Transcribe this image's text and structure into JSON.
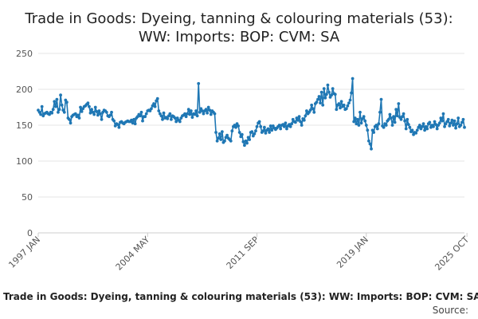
{
  "chart_data": {
    "type": "line",
    "title_lines": [
      "Trade in Goods: Dyeing, tanning & colouring materials (53):",
      "WW: Imports: BOP: CVM: SA"
    ],
    "footer_title": "Trade in Goods: Dyeing, tanning & colouring materials (53): WW: Imports: BOP: CVM: SA",
    "source_label": "Source:",
    "xlabel": "",
    "ylabel": "",
    "ylim": [
      0,
      250
    ],
    "y_ticks": [
      "0",
      "50",
      "100",
      "150",
      "200",
      "250"
    ],
    "x_ticks": [
      "1997 JAN",
      "2004 MAY",
      "2011 SEP",
      "2019 JAN",
      "2025 OCT"
    ],
    "grid": true,
    "legend": "none",
    "color": "#1f77b4",
    "series": [
      {
        "x_start": "1997 JAN",
        "frequency": "monthly",
        "values": [
          171,
          168,
          165,
          176,
          163,
          166,
          167,
          168,
          166,
          165,
          168,
          167,
          172,
          183,
          176,
          186,
          168,
          172,
          192,
          178,
          171,
          168,
          185,
          182,
          160,
          158,
          153,
          162,
          164,
          165,
          166,
          162,
          164,
          160,
          175,
          169,
          173,
          176,
          177,
          179,
          181,
          176,
          167,
          172,
          168,
          165,
          175,
          169,
          164,
          170,
          166,
          158,
          168,
          171,
          170,
          168,
          163,
          162,
          164,
          168,
          158,
          156,
          149,
          152,
          151,
          147,
          154,
          155,
          153,
          152,
          154,
          155,
          156,
          155,
          155,
          157,
          153,
          158,
          152,
          160,
          162,
          165,
          163,
          168,
          156,
          162,
          162,
          166,
          170,
          171,
          170,
          173,
          177,
          180,
          176,
          184,
          187,
          170,
          166,
          163,
          158,
          167,
          160,
          161,
          159,
          163,
          166,
          158,
          163,
          162,
          160,
          155,
          160,
          157,
          155,
          160,
          163,
          164,
          166,
          162,
          166,
          172,
          165,
          170,
          161,
          166,
          165,
          170,
          163,
          208,
          168,
          173,
          170,
          166,
          170,
          172,
          167,
          175,
          171,
          165,
          170,
          168,
          166,
          140,
          128,
          132,
          138,
          130,
          141,
          126,
          128,
          133,
          136,
          132,
          130,
          128,
          142,
          148,
          150,
          147,
          152,
          149,
          140,
          134,
          137,
          127,
          122,
          128,
          125,
          133,
          130,
          140,
          141,
          135,
          138,
          142,
          148,
          153,
          155,
          148,
          140,
          142,
          147,
          139,
          143,
          145,
          140,
          149,
          143,
          149,
          146,
          144,
          146,
          148,
          150,
          145,
          150,
          151,
          148,
          153,
          145,
          149,
          151,
          148,
          152,
          158,
          155,
          154,
          160,
          157,
          162,
          155,
          150,
          159,
          157,
          163,
          170,
          166,
          168,
          171,
          178,
          173,
          168,
          180,
          182,
          186,
          190,
          181,
          196,
          178,
          201,
          188,
          193,
          206,
          196,
          189,
          192,
          201,
          194,
          193,
          172,
          178,
          180,
          174,
          183,
          176,
          178,
          172,
          173,
          177,
          181,
          185,
          195,
          215,
          155,
          160,
          152,
          158,
          150,
          168,
          153,
          159,
          162,
          156,
          150,
          143,
          128,
          124,
          117,
          143,
          140,
          148,
          150,
          145,
          152,
          168,
          186,
          149,
          147,
          152,
          150,
          156,
          158,
          165,
          160,
          150,
          162,
          154,
          172,
          163,
          180,
          161,
          158,
          162,
          166,
          156,
          145,
          158,
          151,
          147,
          141,
          143,
          137,
          140,
          139,
          143,
          147,
          150,
          145,
          148,
          152,
          143,
          148,
          145,
          152,
          154,
          147,
          150,
          148,
          155,
          151,
          145,
          150,
          153,
          160,
          156,
          166,
          148,
          152,
          155,
          158,
          149,
          153,
          157,
          150,
          156,
          146,
          152,
          160,
          148,
          150,
          154,
          158,
          147
        ]
      }
    ]
  }
}
